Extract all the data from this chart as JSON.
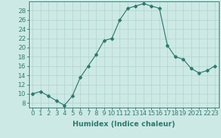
{
  "x": [
    0,
    1,
    2,
    3,
    4,
    5,
    6,
    7,
    8,
    9,
    10,
    11,
    12,
    13,
    14,
    15,
    16,
    17,
    18,
    19,
    20,
    21,
    22,
    23
  ],
  "y": [
    10,
    10.5,
    9.5,
    8.5,
    7.5,
    9.5,
    13.5,
    16,
    18.5,
    21.5,
    22,
    26,
    28.5,
    29,
    29.5,
    29,
    28.5,
    20.5,
    18,
    17.5,
    15.5,
    14.5,
    15,
    16
  ],
  "line_color": "#2d7a6e",
  "marker": "D",
  "marker_size": 2.2,
  "bg_color": "#cce9e5",
  "grid_color": "#b0d0cc",
  "xlabel": "Humidex (Indice chaleur)",
  "ylim": [
    7,
    30
  ],
  "yticks": [
    8,
    10,
    12,
    14,
    16,
    18,
    20,
    22,
    24,
    26,
    28
  ],
  "xticks": [
    0,
    1,
    2,
    3,
    4,
    5,
    6,
    7,
    8,
    9,
    10,
    11,
    12,
    13,
    14,
    15,
    16,
    17,
    18,
    19,
    20,
    21,
    22,
    23
  ],
  "xlabel_fontsize": 7.5,
  "tick_fontsize": 6.5
}
